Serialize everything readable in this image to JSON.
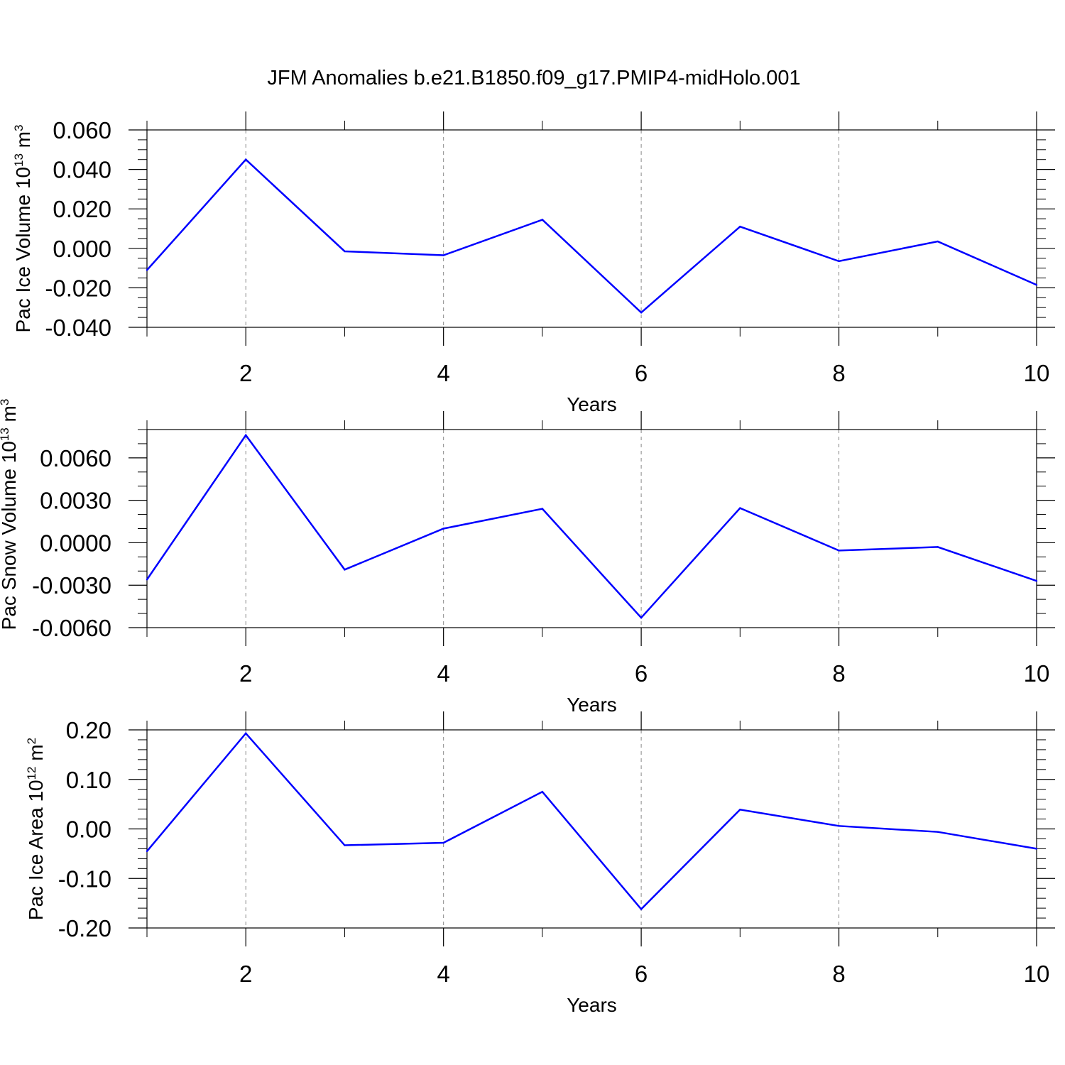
{
  "title": "JFM Anomalies b.e21.B1850.f09_g17.PMIP4-midHolo.001",
  "colors": {
    "series": "#0000ff",
    "grid": "#888888"
  },
  "chart_data": [
    {
      "type": "line",
      "ylabel": {
        "main": "Pac Ice Volume 10",
        "exponent": "13",
        "unit": " m",
        "unit_exponent": "3"
      },
      "xlabel": "Years",
      "xlim": [
        1,
        10
      ],
      "ylim": [
        -0.04,
        0.06
      ],
      "x_ticks": [
        2,
        4,
        6,
        8,
        10
      ],
      "x_tick_labels": [
        "2",
        "4",
        "6",
        "8",
        "10"
      ],
      "y_ticks": [
        -0.04,
        -0.02,
        0.0,
        0.02,
        0.04,
        0.06
      ],
      "y_tick_labels": [
        "-0.040",
        "-0.020",
        "0.000",
        "0.020",
        "0.040",
        "0.060"
      ],
      "y_minor_step": 0.005,
      "grid": "x-dashed",
      "x": [
        1,
        2,
        3,
        4,
        5,
        6,
        7,
        8,
        9,
        10
      ],
      "values": [
        -0.011,
        0.045,
        -0.0015,
        -0.0035,
        0.0145,
        -0.0325,
        0.011,
        -0.0065,
        0.0035,
        -0.0185
      ]
    },
    {
      "type": "line",
      "ylabel": {
        "main": "Pac Snow Volume 10",
        "exponent": "13",
        "unit": " m",
        "unit_exponent": "3"
      },
      "xlabel": "Years",
      "xlim": [
        1,
        10
      ],
      "ylim": [
        -0.006,
        0.008
      ],
      "x_ticks": [
        2,
        4,
        6,
        8,
        10
      ],
      "x_tick_labels": [
        "2",
        "4",
        "6",
        "8",
        "10"
      ],
      "y_ticks": [
        -0.006,
        -0.003,
        0.0,
        0.003,
        0.006
      ],
      "y_tick_labels": [
        "-0.0060",
        "-0.0030",
        "0.0000",
        "0.0030",
        "0.0060"
      ],
      "y_minor_step": 0.001,
      "grid": "x-dashed",
      "x": [
        1,
        2,
        3,
        4,
        5,
        6,
        7,
        8,
        9,
        10
      ],
      "values": [
        -0.0026,
        0.0076,
        -0.0019,
        0.001,
        0.0024,
        -0.0053,
        0.00245,
        -0.00055,
        -0.0003,
        -0.0027
      ]
    },
    {
      "type": "line",
      "ylabel": {
        "main": "Pac Ice Area 10",
        "exponent": "12",
        "unit": " m",
        "unit_exponent": "2"
      },
      "xlabel": "Years",
      "xlim": [
        1,
        10
      ],
      "ylim": [
        -0.2,
        0.2
      ],
      "x_ticks": [
        2,
        4,
        6,
        8,
        10
      ],
      "x_tick_labels": [
        "2",
        "4",
        "6",
        "8",
        "10"
      ],
      "y_ticks": [
        -0.2,
        -0.1,
        0.0,
        0.1,
        0.2
      ],
      "y_tick_labels": [
        "-0.20",
        "-0.10",
        "0.00",
        "0.10",
        "0.20"
      ],
      "y_minor_step": 0.02,
      "grid": "x-dashed",
      "x": [
        1,
        2,
        3,
        4,
        5,
        6,
        7,
        8,
        9,
        10
      ],
      "values": [
        -0.045,
        0.193,
        -0.033,
        -0.028,
        0.075,
        -0.162,
        0.039,
        0.006,
        -0.006,
        -0.04
      ]
    }
  ]
}
